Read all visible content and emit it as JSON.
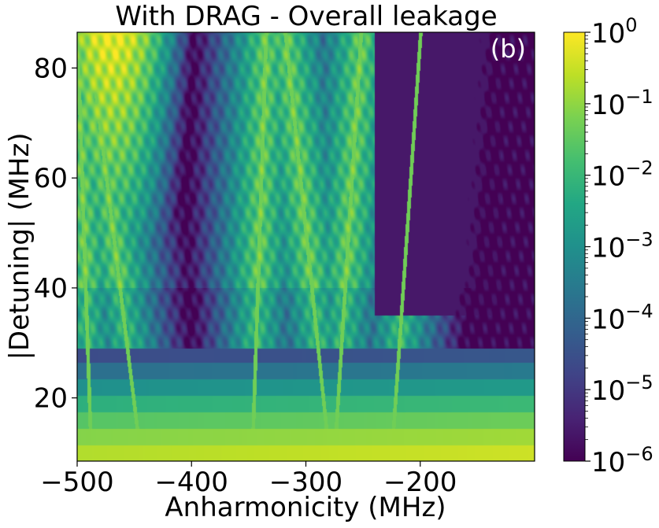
{
  "chart_data": {
    "type": "heatmap",
    "title": "With DRAG -  Overall leakage",
    "panel_label": "(b)",
    "xlabel": "Anharmonicity (MHz)",
    "ylabel": "|Detuning| (MHz)",
    "xlim": [
      -500,
      -100
    ],
    "ylim": [
      8.5,
      86.5
    ],
    "x_ticks": [
      -500,
      -400,
      -300,
      -200
    ],
    "x_tick_labels": [
      "−500",
      "−400",
      "−300",
      "−200"
    ],
    "y_ticks": [
      20,
      40,
      60,
      80
    ],
    "y_tick_labels": [
      "20",
      "40",
      "60",
      "80"
    ],
    "colorbar": {
      "scale": "log",
      "range": [
        1e-06,
        1
      ],
      "colormap": "viridis",
      "ticks": [
        {
          "base": "10",
          "exp": "0"
        },
        {
          "base": "10",
          "exp": "−1"
        },
        {
          "base": "10",
          "exp": "−2"
        },
        {
          "base": "10",
          "exp": "−3"
        },
        {
          "base": "10",
          "exp": "−4"
        },
        {
          "base": "10",
          "exp": "−5"
        },
        {
          "base": "10",
          "exp": "−6"
        }
      ]
    },
    "features": {
      "resonance_lines": [
        {
          "x_at_y10": -488,
          "x_at_y86": -500
        },
        {
          "x_at_y10": -445,
          "x_at_y86": -490
        },
        {
          "x_at_y10": -347,
          "x_at_y86": -335
        },
        {
          "x_at_y10": -275,
          "x_at_y86": -252
        },
        {
          "x_at_y10": -280,
          "x_at_y86": -318
        },
        {
          "x_at_y10": -225,
          "x_at_y86": -200
        }
      ],
      "threshold_detuning": 29,
      "low_detuning_rows_log10": [
        {
          "y": 10,
          "log10": -0.7
        },
        {
          "y": 13,
          "log10": -1.1
        },
        {
          "y": 16,
          "log10": -1.6
        },
        {
          "y": 19,
          "log10": -2.2
        },
        {
          "y": 22,
          "log10": -3.0
        },
        {
          "y": 25,
          "log10": -3.8
        },
        {
          "y": 28,
          "log10": -4.6
        }
      ]
    },
    "grid": false
  }
}
